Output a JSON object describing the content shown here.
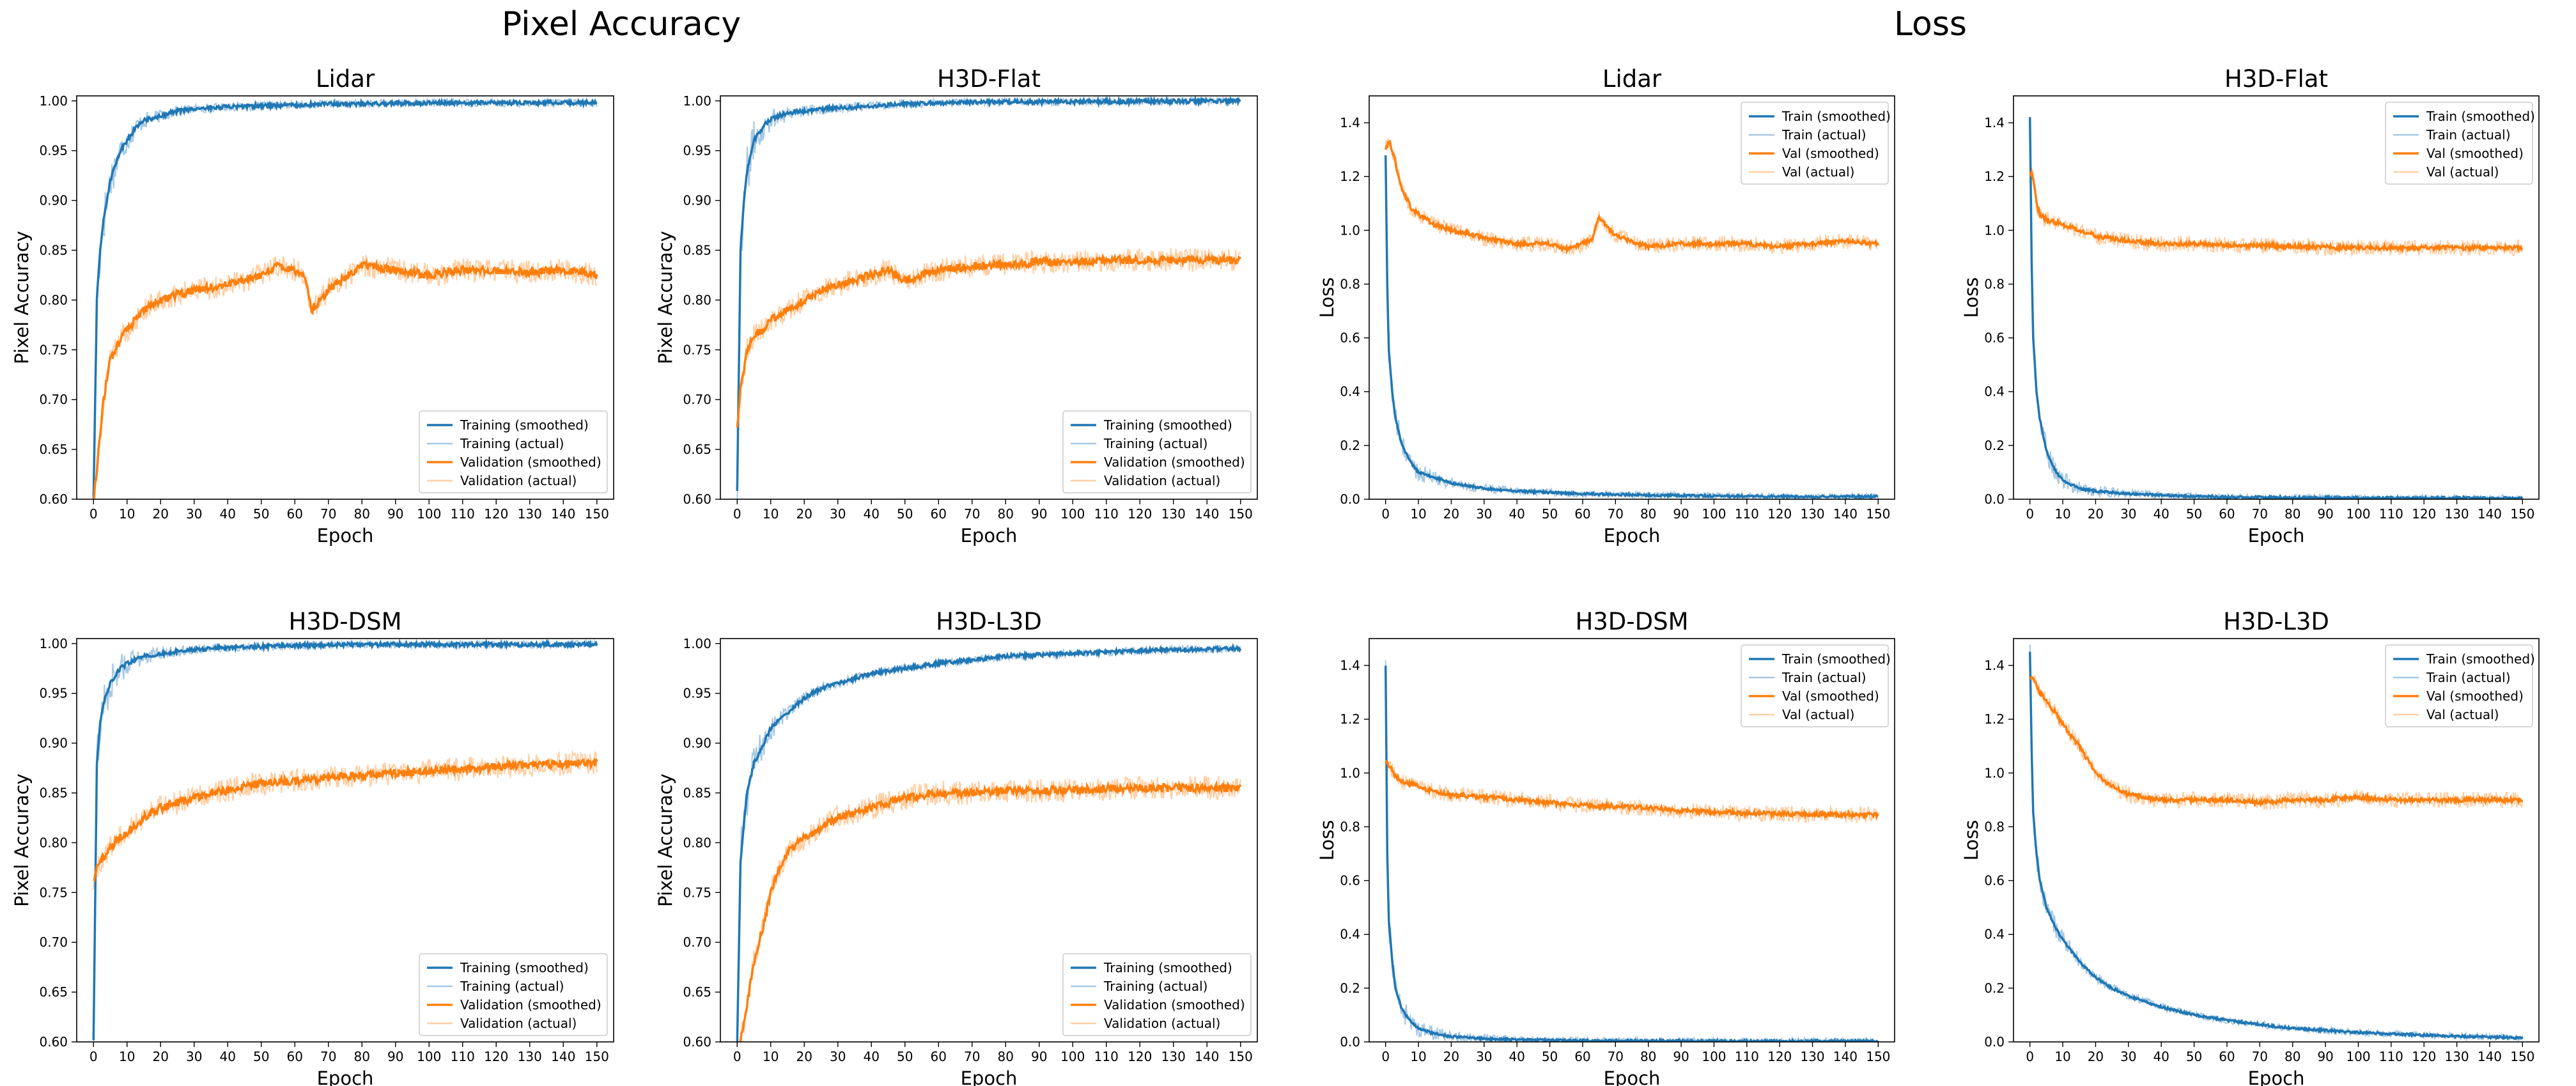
{
  "suptitles": {
    "accuracy": "Pixel Accuracy",
    "loss": "Loss"
  },
  "colors": {
    "train": "#1f77b4",
    "train_actual": "#a6c8e4",
    "val": "#ff7f0e",
    "val_actual": "#ffcfa4"
  },
  "chart_data": [
    {
      "id": "acc-lidar",
      "type": "line",
      "title": "Lidar",
      "xlabel": "Epoch",
      "ylabel": "Pixel Accuracy",
      "xlim": [
        -5,
        155
      ],
      "ylim": [
        0.6,
        1.005
      ],
      "xticks": [
        0,
        10,
        20,
        30,
        40,
        50,
        60,
        70,
        80,
        90,
        100,
        110,
        120,
        130,
        140,
        150
      ],
      "yticks": [
        "0.60",
        "0.65",
        "0.70",
        "0.75",
        "0.80",
        "0.85",
        "0.90",
        "0.95",
        "1.00"
      ],
      "legend_position": "lower-right",
      "legend": [
        "Training (smoothed)",
        "Training (actual)",
        "Validation (smoothed)",
        "Validation (actual)"
      ],
      "series": [
        {
          "name": "Training (smoothed)",
          "x": [
            0,
            1,
            2,
            3,
            5,
            8,
            10,
            13,
            15,
            20,
            25,
            30,
            40,
            50,
            60,
            70,
            80,
            100,
            120,
            150
          ],
          "values": [
            0.6,
            0.8,
            0.85,
            0.88,
            0.92,
            0.95,
            0.96,
            0.975,
            0.98,
            0.985,
            0.99,
            0.992,
            0.994,
            0.995,
            0.996,
            0.997,
            0.997,
            0.998,
            0.998,
            0.998
          ]
        },
        {
          "name": "Validation (smoothed)",
          "x": [
            0,
            1,
            3,
            5,
            8,
            10,
            15,
            20,
            25,
            30,
            40,
            50,
            55,
            60,
            63,
            65,
            70,
            80,
            90,
            100,
            110,
            120,
            130,
            140,
            150
          ],
          "values": [
            0.6,
            0.63,
            0.7,
            0.74,
            0.76,
            0.77,
            0.79,
            0.8,
            0.805,
            0.81,
            0.815,
            0.825,
            0.835,
            0.83,
            0.825,
            0.79,
            0.81,
            0.835,
            0.83,
            0.825,
            0.83,
            0.83,
            0.828,
            0.83,
            0.825
          ]
        }
      ]
    },
    {
      "id": "acc-flat",
      "type": "line",
      "title": "H3D-Flat",
      "xlabel": "Epoch",
      "ylabel": "Pixel Accuracy",
      "xlim": [
        -5,
        155
      ],
      "ylim": [
        0.6,
        1.005
      ],
      "xticks": [
        0,
        10,
        20,
        30,
        40,
        50,
        60,
        70,
        80,
        90,
        100,
        110,
        120,
        130,
        140,
        150
      ],
      "yticks": [
        "0.60",
        "0.65",
        "0.70",
        "0.75",
        "0.80",
        "0.85",
        "0.90",
        "0.95",
        "1.00"
      ],
      "legend_position": "lower-right",
      "legend": [
        "Training (smoothed)",
        "Training (actual)",
        "Validation (smoothed)",
        "Validation (actual)"
      ],
      "series": [
        {
          "name": "Training (smoothed)",
          "x": [
            0,
            1,
            2,
            3,
            5,
            8,
            10,
            15,
            20,
            30,
            40,
            50,
            60,
            80,
            100,
            150
          ],
          "values": [
            0.61,
            0.85,
            0.9,
            0.93,
            0.96,
            0.975,
            0.982,
            0.988,
            0.99,
            0.993,
            0.995,
            0.997,
            0.998,
            0.999,
            0.999,
            1.0
          ]
        },
        {
          "name": "Validation (smoothed)",
          "x": [
            0,
            1,
            3,
            5,
            8,
            10,
            15,
            20,
            25,
            30,
            40,
            45,
            50,
            60,
            70,
            80,
            90,
            100,
            110,
            120,
            130,
            140,
            150
          ],
          "values": [
            0.67,
            0.71,
            0.75,
            0.765,
            0.77,
            0.78,
            0.79,
            0.8,
            0.81,
            0.815,
            0.825,
            0.83,
            0.82,
            0.83,
            0.834,
            0.836,
            0.838,
            0.838,
            0.84,
            0.84,
            0.84,
            0.84,
            0.84
          ]
        }
      ]
    },
    {
      "id": "loss-lidar",
      "type": "line",
      "title": "Lidar",
      "xlabel": "Epoch",
      "ylabel": "Loss",
      "xlim": [
        -5,
        155
      ],
      "ylim": [
        0,
        1.5
      ],
      "xticks": [
        0,
        10,
        20,
        30,
        40,
        50,
        60,
        70,
        80,
        90,
        100,
        110,
        120,
        130,
        140,
        150
      ],
      "yticks": [
        "0.0",
        "0.2",
        "0.4",
        "0.6",
        "0.8",
        "1.0",
        "1.2",
        "1.4"
      ],
      "legend_position": "top-right",
      "legend": [
        "Train (smoothed)",
        "Train (actual)",
        "Val (smoothed)",
        "Val (actual)"
      ],
      "series": [
        {
          "name": "Train (smoothed)",
          "x": [
            0,
            0.5,
            1,
            2,
            3,
            5,
            8,
            10,
            15,
            20,
            30,
            40,
            50,
            60,
            80,
            100,
            120,
            150
          ],
          "values": [
            1.28,
            0.8,
            0.55,
            0.4,
            0.3,
            0.2,
            0.13,
            0.1,
            0.08,
            0.06,
            0.04,
            0.03,
            0.025,
            0.02,
            0.015,
            0.012,
            0.01,
            0.01
          ]
        },
        {
          "name": "Val (smoothed)",
          "x": [
            0,
            1,
            2,
            3,
            5,
            8,
            10,
            15,
            20,
            25,
            30,
            40,
            50,
            55,
            60,
            63,
            65,
            70,
            80,
            90,
            100,
            110,
            120,
            130,
            140,
            150
          ],
          "values": [
            1.3,
            1.33,
            1.3,
            1.25,
            1.15,
            1.08,
            1.06,
            1.02,
            1.0,
            0.99,
            0.97,
            0.95,
            0.95,
            0.93,
            0.95,
            0.97,
            1.05,
            0.98,
            0.94,
            0.95,
            0.95,
            0.95,
            0.94,
            0.95,
            0.96,
            0.95
          ]
        }
      ]
    },
    {
      "id": "loss-flat",
      "type": "line",
      "title": "H3D-Flat",
      "xlabel": "Epoch",
      "ylabel": "Loss",
      "xlim": [
        -5,
        155
      ],
      "ylim": [
        0,
        1.5
      ],
      "xticks": [
        0,
        10,
        20,
        30,
        40,
        50,
        60,
        70,
        80,
        90,
        100,
        110,
        120,
        130,
        140,
        150
      ],
      "yticks": [
        "0.0",
        "0.2",
        "0.4",
        "0.6",
        "0.8",
        "1.0",
        "1.2",
        "1.4"
      ],
      "legend_position": "top-right",
      "legend": [
        "Train (smoothed)",
        "Train (actual)",
        "Val (smoothed)",
        "Val (actual)"
      ],
      "series": [
        {
          "name": "Train (smoothed)",
          "x": [
            0,
            0.5,
            1,
            2,
            3,
            5,
            8,
            10,
            15,
            20,
            30,
            40,
            50,
            60,
            80,
            100,
            150
          ],
          "values": [
            1.42,
            0.9,
            0.6,
            0.4,
            0.3,
            0.18,
            0.1,
            0.07,
            0.04,
            0.03,
            0.02,
            0.015,
            0.01,
            0.008,
            0.006,
            0.005,
            0.004
          ]
        },
        {
          "name": "Val (smoothed)",
          "x": [
            0,
            1,
            2,
            3,
            5,
            8,
            10,
            15,
            20,
            30,
            40,
            50,
            60,
            80,
            100,
            120,
            150
          ],
          "values": [
            1.22,
            1.2,
            1.1,
            1.06,
            1.04,
            1.03,
            1.02,
            1.0,
            0.98,
            0.96,
            0.95,
            0.95,
            0.945,
            0.94,
            0.935,
            0.935,
            0.935
          ]
        }
      ]
    },
    {
      "id": "acc-dsm",
      "type": "line",
      "title": "H3D-DSM",
      "xlabel": "Epoch",
      "ylabel": "Pixel Accuracy",
      "xlim": [
        -5,
        155
      ],
      "ylim": [
        0.6,
        1.005
      ],
      "xticks": [
        0,
        10,
        20,
        30,
        40,
        50,
        60,
        70,
        80,
        90,
        100,
        110,
        120,
        130,
        140,
        150
      ],
      "yticks": [
        "0.60",
        "0.65",
        "0.70",
        "0.75",
        "0.80",
        "0.85",
        "0.90",
        "0.95",
        "1.00"
      ],
      "legend_position": "lower-right",
      "legend": [
        "Training (smoothed)",
        "Training (actual)",
        "Validation (smoothed)",
        "Validation (actual)"
      ],
      "series": [
        {
          "name": "Training (smoothed)",
          "x": [
            0,
            1,
            2,
            3,
            5,
            8,
            10,
            15,
            20,
            30,
            40,
            50,
            60,
            80,
            100,
            150
          ],
          "values": [
            0.6,
            0.88,
            0.92,
            0.94,
            0.96,
            0.975,
            0.98,
            0.987,
            0.99,
            0.994,
            0.996,
            0.997,
            0.998,
            0.999,
            0.999,
            0.999
          ]
        },
        {
          "name": "Validation (smoothed)",
          "x": [
            0,
            1,
            3,
            5,
            8,
            10,
            15,
            20,
            30,
            40,
            50,
            60,
            70,
            80,
            90,
            100,
            110,
            120,
            130,
            140,
            150
          ],
          "values": [
            0.76,
            0.775,
            0.785,
            0.795,
            0.805,
            0.81,
            0.825,
            0.835,
            0.845,
            0.853,
            0.86,
            0.862,
            0.865,
            0.868,
            0.87,
            0.872,
            0.874,
            0.876,
            0.878,
            0.879,
            0.88
          ]
        }
      ]
    },
    {
      "id": "acc-l3d",
      "type": "line",
      "title": "H3D-L3D",
      "xlabel": "Epoch",
      "ylabel": "Pixel Accuracy",
      "xlim": [
        -5,
        155
      ],
      "ylim": [
        0.6,
        1.005
      ],
      "xticks": [
        0,
        10,
        20,
        30,
        40,
        50,
        60,
        70,
        80,
        90,
        100,
        110,
        120,
        130,
        140,
        150
      ],
      "yticks": [
        "0.60",
        "0.65",
        "0.70",
        "0.75",
        "0.80",
        "0.85",
        "0.90",
        "0.95",
        "1.00"
      ],
      "legend_position": "lower-right",
      "legend": [
        "Training (smoothed)",
        "Training (actual)",
        "Validation (smoothed)",
        "Validation (actual)"
      ],
      "series": [
        {
          "name": "Training (smoothed)",
          "x": [
            0,
            1,
            2,
            3,
            5,
            8,
            10,
            15,
            20,
            25,
            30,
            40,
            50,
            60,
            80,
            100,
            120,
            150
          ],
          "values": [
            0.6,
            0.78,
            0.82,
            0.85,
            0.88,
            0.9,
            0.915,
            0.93,
            0.945,
            0.955,
            0.96,
            0.97,
            0.975,
            0.98,
            0.987,
            0.99,
            0.993,
            0.995
          ]
        },
        {
          "name": "Validation (smoothed)",
          "x": [
            0,
            1,
            2,
            3,
            5,
            8,
            10,
            12,
            15,
            20,
            25,
            30,
            40,
            50,
            60,
            70,
            80,
            90,
            100,
            120,
            150
          ],
          "values": [
            0.58,
            0.6,
            0.62,
            0.64,
            0.68,
            0.72,
            0.75,
            0.77,
            0.79,
            0.805,
            0.815,
            0.825,
            0.835,
            0.845,
            0.85,
            0.85,
            0.852,
            0.852,
            0.853,
            0.855,
            0.855
          ]
        }
      ]
    },
    {
      "id": "loss-dsm",
      "type": "line",
      "title": "H3D-DSM",
      "xlabel": "Epoch",
      "ylabel": "Loss",
      "xlim": [
        -5,
        155
      ],
      "ylim": [
        0,
        1.5
      ],
      "xticks": [
        0,
        10,
        20,
        30,
        40,
        50,
        60,
        70,
        80,
        90,
        100,
        110,
        120,
        130,
        140,
        150
      ],
      "yticks": [
        "0.0",
        "0.2",
        "0.4",
        "0.6",
        "0.8",
        "1.0",
        "1.2",
        "1.4"
      ],
      "legend_position": "top-right",
      "legend": [
        "Train (smoothed)",
        "Train (actual)",
        "Val (smoothed)",
        "Val (actual)"
      ],
      "series": [
        {
          "name": "Train (smoothed)",
          "x": [
            0,
            0.5,
            1,
            2,
            3,
            5,
            8,
            10,
            15,
            20,
            30,
            40,
            50,
            60,
            80,
            100,
            150
          ],
          "values": [
            1.4,
            0.7,
            0.45,
            0.3,
            0.2,
            0.12,
            0.07,
            0.05,
            0.03,
            0.02,
            0.012,
            0.008,
            0.006,
            0.005,
            0.004,
            0.003,
            0.003
          ]
        },
        {
          "name": "Val (smoothed)",
          "x": [
            0,
            1,
            2,
            3,
            5,
            8,
            10,
            15,
            20,
            30,
            40,
            50,
            60,
            70,
            80,
            90,
            100,
            110,
            120,
            130,
            140,
            150
          ],
          "values": [
            1.04,
            1.03,
            1.01,
            0.99,
            0.97,
            0.96,
            0.95,
            0.93,
            0.92,
            0.91,
            0.9,
            0.89,
            0.88,
            0.875,
            0.87,
            0.86,
            0.855,
            0.85,
            0.848,
            0.846,
            0.845,
            0.845
          ]
        }
      ]
    },
    {
      "id": "loss-l3d",
      "type": "line",
      "title": "H3D-L3D",
      "xlabel": "Epoch",
      "ylabel": "Loss",
      "xlim": [
        -5,
        155
      ],
      "ylim": [
        0,
        1.5
      ],
      "xticks": [
        0,
        10,
        20,
        30,
        40,
        50,
        60,
        70,
        80,
        90,
        100,
        110,
        120,
        130,
        140,
        150
      ],
      "yticks": [
        "0.0",
        "0.2",
        "0.4",
        "0.6",
        "0.8",
        "1.0",
        "1.2",
        "1.4"
      ],
      "legend_position": "top-right",
      "legend": [
        "Train (smoothed)",
        "Train (actual)",
        "Val (smoothed)",
        "Val (actual)"
      ],
      "series": [
        {
          "name": "Train (smoothed)",
          "x": [
            0,
            0.5,
            1,
            2,
            3,
            5,
            8,
            10,
            15,
            20,
            25,
            30,
            40,
            50,
            60,
            80,
            100,
            120,
            150
          ],
          "values": [
            1.45,
            1.1,
            0.85,
            0.7,
            0.6,
            0.5,
            0.42,
            0.38,
            0.3,
            0.24,
            0.2,
            0.17,
            0.13,
            0.1,
            0.08,
            0.05,
            0.035,
            0.025,
            0.015
          ]
        },
        {
          "name": "Val (smoothed)",
          "x": [
            0,
            1,
            2,
            3,
            5,
            8,
            10,
            15,
            20,
            25,
            30,
            40,
            50,
            60,
            70,
            80,
            90,
            100,
            110,
            120,
            130,
            140,
            150
          ],
          "values": [
            1.36,
            1.35,
            1.33,
            1.3,
            1.27,
            1.22,
            1.18,
            1.1,
            1.0,
            0.95,
            0.92,
            0.9,
            0.9,
            0.9,
            0.89,
            0.9,
            0.9,
            0.91,
            0.9,
            0.9,
            0.9,
            0.9,
            0.9
          ]
        }
      ]
    }
  ]
}
